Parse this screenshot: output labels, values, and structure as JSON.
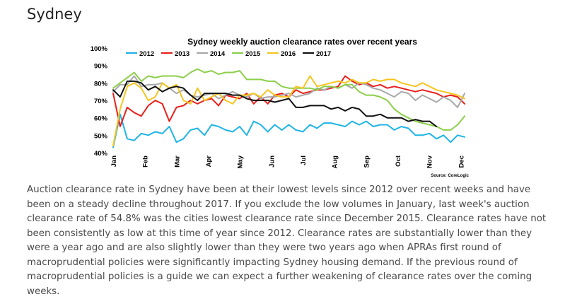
{
  "heading": "Sydney",
  "paragraph": "Auction clearance rate in Sydney have been at their lowest levels since 2012 over recent weeks and have been on a steady decline throughout 2017.  If you exclude the low volumes in January, last week's auction clearance rate of 54.8% was the cities lowest clearance rate since December 2015.  Clearance rates have not been consistently as low at this time of year since 2012.  Clearance rates are substantially lower than they were a year ago and are also slightly lower than they were two years ago when APRAs first round of macroprudential policies were significantly impacting Sydney housing demand.  If the previous round of macroprudential policies is a guide we can expect a further weakening of clearance rates over the coming weeks.",
  "chart_data": {
    "type": "line",
    "title": "Sydney weekly auction clearance rates over recent years",
    "source": "Source: CoreLogic",
    "x_ticks": [
      "Jan",
      "Feb",
      "Mar",
      "Apr",
      "May",
      "Jun",
      "Jul",
      "Aug",
      "Sep",
      "Oct",
      "Nov",
      "Dec"
    ],
    "y_ticks": [
      "100%",
      "90%",
      "80%",
      "70%",
      "60%",
      "50%",
      "40%"
    ],
    "ylim": [
      40,
      100
    ],
    "x_range": [
      1,
      52
    ],
    "legend_position": "top",
    "grid": false,
    "series": [
      {
        "name": "2012",
        "color": "#1fb4e6",
        "weeks": [
          1,
          2,
          3,
          4,
          5,
          6,
          7,
          8,
          9,
          10,
          11,
          12,
          13,
          14,
          15,
          16,
          17,
          18,
          19,
          20,
          21,
          22,
          23,
          24,
          25,
          26,
          27,
          28,
          29,
          30,
          31,
          32,
          33,
          34,
          35,
          36,
          37,
          38,
          39,
          40,
          41,
          42,
          43,
          44,
          45,
          46,
          47,
          48,
          49,
          50,
          51
        ],
        "values": [
          43,
          62,
          48,
          47,
          51,
          50,
          52,
          51,
          55,
          46,
          48,
          53,
          54,
          50,
          56,
          55,
          53,
          52,
          55,
          50,
          58,
          56,
          52,
          56,
          53,
          56,
          53,
          52,
          56,
          54,
          57,
          57,
          56,
          55,
          58,
          56,
          58,
          55,
          56,
          56,
          53,
          55,
          54,
          50,
          50,
          51,
          48,
          50,
          46,
          50,
          49
        ]
      },
      {
        "name": "2013",
        "color": "#e8201c",
        "weeks": [
          1,
          2,
          3,
          4,
          5,
          6,
          7,
          8,
          9,
          10,
          11,
          12,
          13,
          14,
          15,
          16,
          17,
          18,
          19,
          20,
          21,
          22,
          23,
          24,
          25,
          26,
          27,
          28,
          29,
          30,
          31,
          32,
          33,
          34,
          35,
          36,
          37,
          38,
          39,
          40,
          41,
          42,
          43,
          44,
          45,
          46,
          47,
          48,
          49,
          50,
          51
        ],
        "values": [
          74,
          55,
          66,
          63,
          61,
          67,
          70,
          68,
          58,
          66,
          67,
          70,
          68,
          70,
          71,
          67,
          73,
          72,
          71,
          74,
          68,
          72,
          68,
          73,
          74,
          72,
          76,
          74,
          75,
          76,
          76,
          77,
          78,
          84,
          81,
          79,
          80,
          78,
          79,
          77,
          78,
          77,
          76,
          75,
          76,
          75,
          74,
          72,
          73,
          72,
          68
        ]
      },
      {
        "name": "2014",
        "color": "#a8a8a8",
        "weeks": [
          1,
          2,
          3,
          4,
          5,
          6,
          7,
          8,
          9,
          10,
          11,
          12,
          13,
          14,
          15,
          16,
          17,
          18,
          19,
          20,
          21,
          22,
          23,
          24,
          25,
          26,
          27,
          28,
          29,
          30,
          31,
          32,
          33,
          34,
          35,
          36,
          37,
          38,
          39,
          40,
          41,
          42,
          43,
          44,
          45,
          46,
          47,
          48,
          49,
          50,
          51
        ],
        "values": [
          75,
          79,
          79,
          84,
          78,
          79,
          79,
          80,
          77,
          74,
          76,
          73,
          72,
          73,
          74,
          71,
          73,
          75,
          73,
          72,
          74,
          71,
          72,
          72,
          73,
          74,
          72,
          73,
          74,
          77,
          76,
          78,
          77,
          79,
          77,
          80,
          79,
          77,
          76,
          74,
          72,
          75,
          74,
          70,
          73,
          71,
          69,
          72,
          70,
          66,
          74
        ]
      },
      {
        "name": "2015",
        "color": "#8ccf4a",
        "weeks": [
          1,
          2,
          3,
          4,
          5,
          6,
          7,
          8,
          9,
          10,
          11,
          12,
          13,
          14,
          15,
          16,
          17,
          18,
          19,
          20,
          21,
          22,
          23,
          24,
          25,
          26,
          27,
          28,
          29,
          30,
          31,
          32,
          33,
          34,
          35,
          36,
          37,
          38,
          39,
          40,
          41,
          42,
          43,
          44,
          45,
          46,
          47,
          48,
          49,
          50,
          51
        ],
        "values": [
          77,
          80,
          83,
          86,
          81,
          84,
          83,
          84,
          84,
          84,
          83,
          86,
          88,
          86,
          87,
          85,
          86,
          86,
          87,
          82,
          82,
          82,
          81,
          81,
          78,
          77,
          77,
          77,
          77,
          76,
          78,
          78,
          77,
          79,
          79,
          75,
          73,
          73,
          72,
          70,
          65,
          62,
          60,
          58,
          57,
          56,
          55,
          53,
          53,
          56,
          61
        ]
      },
      {
        "name": "2016",
        "color": "#f7c51f",
        "weeks": [
          1,
          2,
          3,
          4,
          5,
          6,
          7,
          8,
          9,
          10,
          11,
          12,
          13,
          14,
          15,
          16,
          17,
          18,
          19,
          20,
          21,
          22,
          23,
          24,
          25,
          26,
          27,
          28,
          29,
          30,
          31,
          32,
          33,
          34,
          35,
          36,
          37,
          38,
          39,
          40,
          41,
          42,
          43,
          44,
          45,
          46,
          47,
          48,
          49,
          50,
          51
        ],
        "values": [
          44,
          65,
          78,
          80,
          77,
          70,
          72,
          80,
          77,
          79,
          70,
          68,
          77,
          70,
          72,
          74,
          70,
          68,
          73,
          73,
          74,
          72,
          76,
          73,
          72,
          72,
          78,
          77,
          84,
          78,
          79,
          80,
          81,
          80,
          82,
          80,
          80,
          82,
          81,
          82,
          82,
          80,
          79,
          78,
          80,
          78,
          76,
          75,
          74,
          73,
          71
        ]
      },
      {
        "name": "2017",
        "color": "#111111",
        "weeks": [
          1,
          2,
          3,
          4,
          5,
          6,
          7,
          8,
          9,
          10,
          11,
          12,
          13,
          14,
          15,
          16,
          17,
          18,
          19,
          20,
          21,
          22,
          23,
          24,
          25,
          26,
          27,
          28,
          29,
          30,
          31,
          32,
          33,
          34,
          35,
          36,
          37,
          38,
          39,
          40,
          41,
          42,
          43,
          44,
          45,
          46,
          47
        ],
        "values": [
          76,
          72,
          81,
          81,
          80,
          76,
          78,
          75,
          77,
          78,
          77,
          73,
          70,
          74,
          74,
          74,
          74,
          73,
          73,
          71,
          70,
          70,
          70,
          69,
          70,
          71,
          66,
          66,
          67,
          67,
          67,
          65,
          66,
          64,
          66,
          65,
          61,
          61,
          62,
          60,
          60,
          60,
          58,
          59,
          58,
          58,
          55
        ]
      }
    ]
  },
  "colors": {
    "background": "#ffffff",
    "text": "#4a4a4a",
    "heading": "#222222"
  }
}
